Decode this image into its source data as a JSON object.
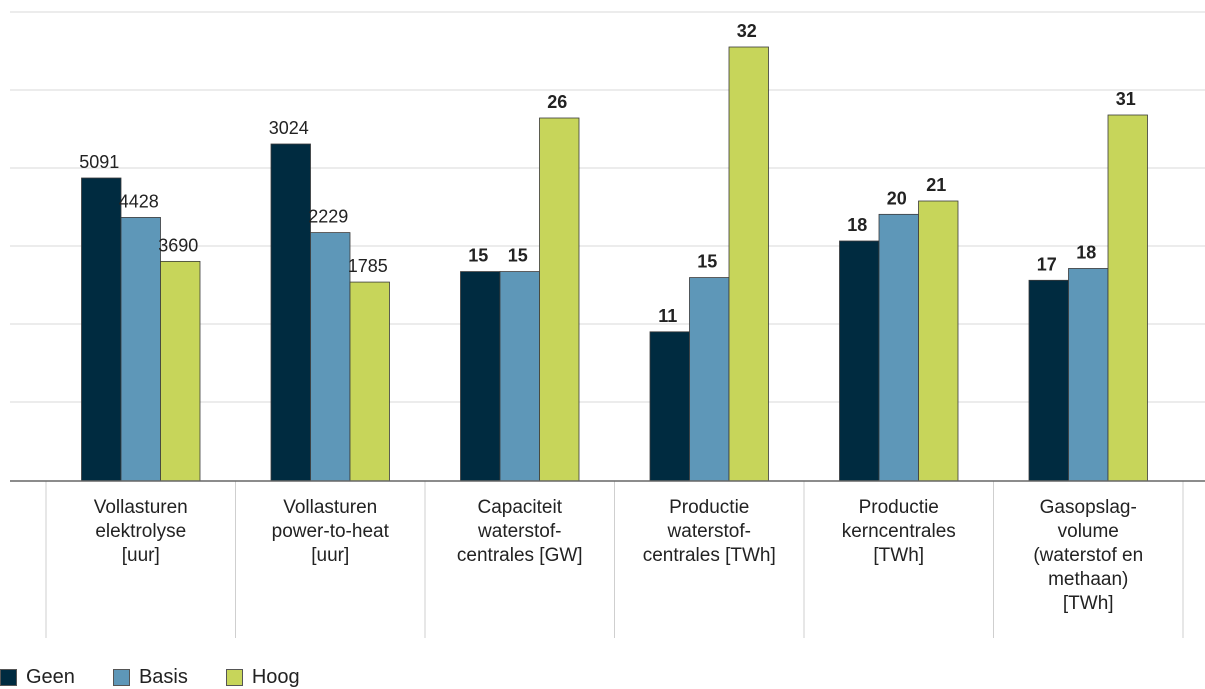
{
  "chart_data": {
    "type": "bar",
    "categories": [
      [
        "Vollasturen",
        "elektrolyse",
        "[uur]"
      ],
      [
        "Vollasturen",
        "power-to-heat",
        "[uur]"
      ],
      [
        "Capaciteit",
        "waterstof-",
        "centrales [GW]"
      ],
      [
        "Productie",
        "waterstof-",
        "centrales [TWh]"
      ],
      [
        "Productie",
        "kerncentrales",
        "[TWh]"
      ],
      [
        "Gasopslag-",
        "volume",
        "(waterstof en",
        "methaan)",
        "[TWh]"
      ]
    ],
    "series": [
      {
        "name": "Geen",
        "color": "#002b40",
        "values": [
          5091,
          3024,
          15,
          11,
          18,
          17
        ]
      },
      {
        "name": "Basis",
        "color": "#5e97b8",
        "values": [
          4428,
          2229,
          15,
          15,
          20,
          18
        ]
      },
      {
        "name": "Hoog",
        "color": "#c7d55a",
        "values": [
          3690,
          1785,
          26,
          32,
          21,
          31
        ]
      }
    ],
    "bar_heights_relative_to_group_max": "each category group is scaled independently",
    "grid": true,
    "legend": "bottom-left"
  }
}
